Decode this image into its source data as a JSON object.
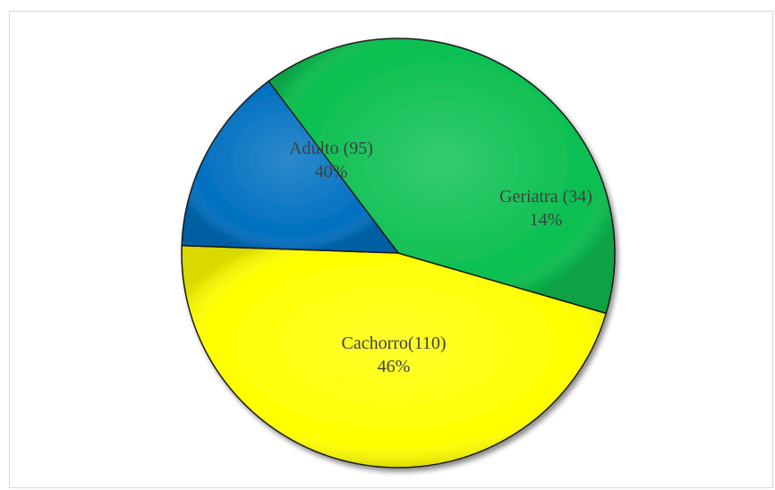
{
  "chart_data": {
    "type": "pie",
    "title": "",
    "slices": [
      {
        "label": "Cachorro(110)",
        "value": 110,
        "percent": "46%",
        "color": "#ffff00"
      },
      {
        "label": "Adulto (95)",
        "value": 95,
        "percent": "40%",
        "color": "#0abf50"
      },
      {
        "label": "Geriatra (34)",
        "value": 34,
        "percent": "14%",
        "color": "#0070c0"
      }
    ],
    "legend": "none",
    "label_color": "#404040",
    "edge_color": "#1a1a1a"
  }
}
